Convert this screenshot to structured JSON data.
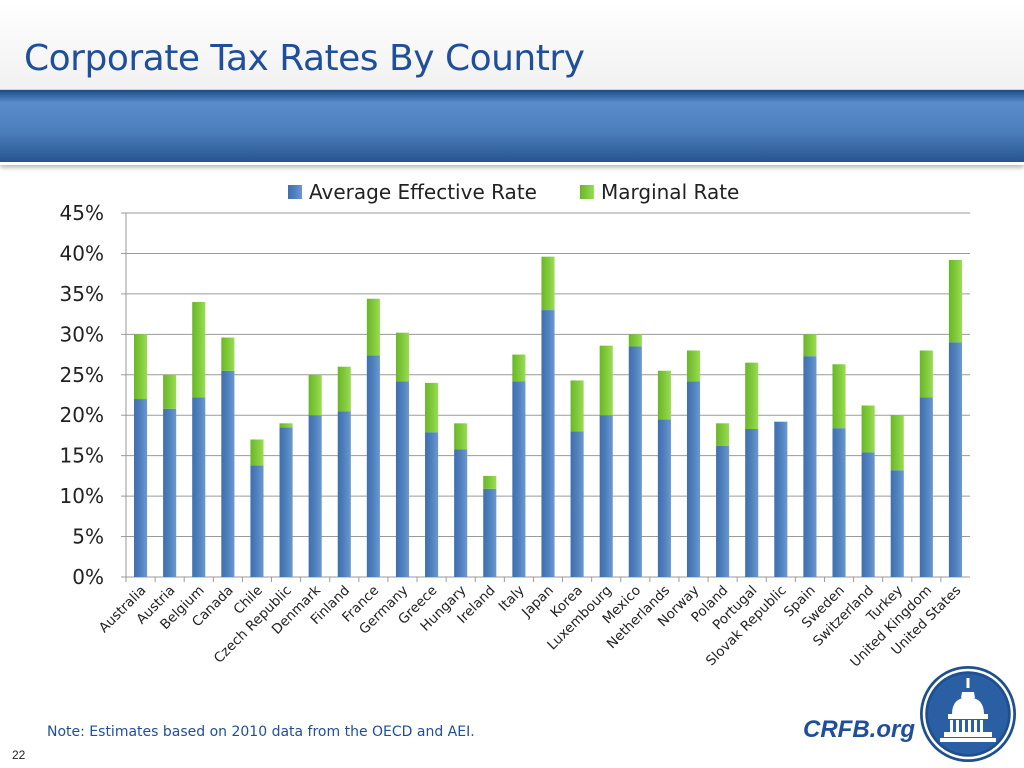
{
  "slide": {
    "title": "Corporate Tax Rates By Country",
    "note": "Note: Estimates based on 2010 data from the OECD and AEI.",
    "brand": "CRFB.org",
    "page_number": "22"
  },
  "colors": {
    "title": "#1f4e9b",
    "average_effective": "#4f81bd",
    "marginal": "#7fc93a",
    "band": "#4b7dbb"
  },
  "chart_data": {
    "type": "bar",
    "stacked": true,
    "title": "",
    "xlabel": "",
    "ylabel": "",
    "ylim": [
      0,
      45
    ],
    "yticks": [
      "0%",
      "5%",
      "10%",
      "15%",
      "20%",
      "25%",
      "30%",
      "35%",
      "40%",
      "45%"
    ],
    "grid": true,
    "legend_position": "top",
    "categories": [
      "Australia",
      "Austria",
      "Belgium",
      "Canada",
      "Chile",
      "Czech Republic",
      "Denmark",
      "Finland",
      "France",
      "Germany",
      "Greece",
      "Hungary",
      "Ireland",
      "Italy",
      "Japan",
      "Korea",
      "Luxembourg",
      "Mexico",
      "Netherlands",
      "Norway",
      "Poland",
      "Portugal",
      "Slovak Republic",
      "Spain",
      "Sweden",
      "Switzerland",
      "Turkey",
      "United Kingdom",
      "United States"
    ],
    "series": [
      {
        "name": "Average Effective Rate",
        "values": [
          22.0,
          20.8,
          22.2,
          25.5,
          13.8,
          18.5,
          20.0,
          20.5,
          27.4,
          24.2,
          17.9,
          15.8,
          10.9,
          24.2,
          33.0,
          18.0,
          20.0,
          28.5,
          19.5,
          24.2,
          16.2,
          18.3,
          19.2,
          27.3,
          18.4,
          15.4,
          13.2,
          22.2,
          29.0
        ]
      },
      {
        "name": "Marginal Rate",
        "values": [
          8.0,
          4.2,
          11.8,
          4.1,
          3.2,
          0.5,
          5.0,
          5.5,
          7.0,
          6.0,
          6.1,
          3.2,
          1.6,
          3.3,
          6.6,
          6.3,
          8.6,
          1.5,
          6.0,
          3.8,
          2.8,
          8.2,
          0.0,
          2.7,
          7.9,
          5.8,
          6.8,
          5.8,
          10.2
        ]
      }
    ]
  },
  "seal": {
    "icon": "capitol-dome-seal-icon"
  }
}
